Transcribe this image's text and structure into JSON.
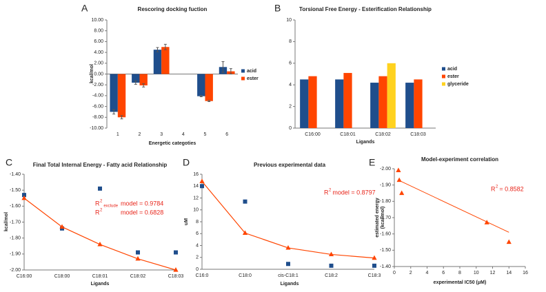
{
  "chart_data": [
    {
      "panel_label": "A",
      "type": "bar",
      "title": "Rescoring docking fuction",
      "ylabel": "kcal/mol",
      "xlabel": "Energetic categoties",
      "categories": [
        "1",
        "2",
        "3",
        "4",
        "5",
        "6"
      ],
      "ylim": [
        -10,
        10
      ],
      "yticks": [
        {
          "value": -10,
          "label": "-10.00"
        },
        {
          "value": -8,
          "label": "-8.00"
        },
        {
          "value": -6,
          "label": "-6.00"
        },
        {
          "value": -4,
          "label": "-4.00"
        },
        {
          "value": -2,
          "label": "-2.00"
        },
        {
          "value": 0,
          "label": "0.00"
        },
        {
          "value": 2,
          "label": "2.00"
        },
        {
          "value": 4,
          "label": "4.00"
        },
        {
          "value": 6,
          "label": "6.00"
        },
        {
          "value": 8,
          "label": "8.00"
        },
        {
          "value": 10,
          "label": "10.00"
        }
      ],
      "legend": "right",
      "series": [
        {
          "name": "acid",
          "color": "#1f4e8c",
          "values": [
            -7.0,
            -1.6,
            4.5,
            null,
            -4.1,
            1.3
          ],
          "errors": [
            0.4,
            0.3,
            0.4,
            null,
            0.1,
            1.0
          ]
        },
        {
          "name": "ester",
          "color": "#ff4500",
          "values": [
            -8.0,
            -2.1,
            5.0,
            null,
            -5.0,
            0.5
          ],
          "errors": [
            0.3,
            0.3,
            0.5,
            null,
            0.1,
            0.5
          ]
        }
      ]
    },
    {
      "panel_label": "B",
      "type": "bar",
      "title": "Torsional Free Energy - Esterification Relationship",
      "xlabel": "Ligands",
      "categories": [
        "C16:00",
        "C18:01",
        "C18:02",
        "C18:03"
      ],
      "ylim": [
        0,
        10
      ],
      "yticks": [
        0,
        2,
        4,
        6,
        8,
        10
      ],
      "legend": "right",
      "series": [
        {
          "name": "acid",
          "color": "#1f4e8c",
          "values": [
            4.5,
            4.5,
            4.2,
            4.2
          ]
        },
        {
          "name": "ester",
          "color": "#ff4500",
          "values": [
            4.8,
            5.1,
            4.8,
            4.5
          ]
        },
        {
          "name": "glyceride",
          "color": "#ffd21f",
          "values": [
            null,
            null,
            6.0,
            null
          ]
        }
      ]
    },
    {
      "panel_label": "C",
      "type": "scatter",
      "title": "Final Total Internal Energy - Fatty acid Relationship",
      "ylabel": "kcal/mol",
      "xlabel": "Ligands",
      "categories": [
        "C16:00",
        "C18:00",
        "C18:01",
        "C18:02",
        "C18:03"
      ],
      "ylim": [
        -2.0,
        -1.4
      ],
      "yticks": [
        {
          "value": -2.0,
          "label": "-2.00"
        },
        {
          "value": -1.9,
          "label": "-1.90"
        },
        {
          "value": -1.8,
          "label": "-1.80"
        },
        {
          "value": -1.7,
          "label": "-1.70"
        },
        {
          "value": -1.6,
          "label": "-1.60"
        },
        {
          "value": -1.5,
          "label": "-1.50"
        },
        {
          "value": -1.4,
          "label": "-1.40"
        }
      ],
      "series": [
        {
          "color": "#1f4e8c",
          "marker": "square",
          "values": [
            -1.53,
            -1.74,
            -1.49,
            -1.89,
            -1.89
          ]
        },
        {
          "color": "#ff4500",
          "marker": "triangle",
          "line": true,
          "values": [
            -1.55,
            -1.73,
            -1.84,
            -1.93,
            -2.0
          ]
        }
      ],
      "annotations": [
        {
          "base": "R",
          "sup": "2",
          "sub": "exclude",
          "text": "model = 0.9784"
        },
        {
          "base": "R",
          "sup": "2",
          "text": "model = 0.6828"
        }
      ]
    },
    {
      "panel_label": "D",
      "type": "scatter",
      "title": "Previous experimental data",
      "ylabel": "uM",
      "xlabel": "Ligands",
      "categories": [
        "C16:0",
        "C18:0",
        "cis-C18:1",
        "C18:2",
        "C18:3"
      ],
      "ylim": [
        0,
        16
      ],
      "yticks": [
        0,
        2,
        4,
        6,
        8,
        10,
        12,
        14,
        16
      ],
      "series": [
        {
          "color": "#1f4e8c",
          "marker": "square",
          "values": [
            14,
            11.4,
            0.9,
            0.6,
            0.6
          ]
        },
        {
          "color": "#ff4500",
          "marker": "triangle",
          "line": true,
          "values": [
            14.8,
            6.1,
            3.6,
            2.5,
            1.9
          ]
        }
      ],
      "annotations": [
        {
          "base": "R",
          "sup": "2",
          "text": "model = 0.8797"
        }
      ]
    },
    {
      "panel_label": "E",
      "type": "scatter",
      "title": "Model-experiment correlation",
      "ylabel": [
        "estimated energy",
        "(kcal/mol)"
      ],
      "xlabel": "experimental IC50 (μM)",
      "xlim": [
        0,
        16
      ],
      "xticks": [
        0,
        2,
        4,
        6,
        8,
        10,
        12,
        14,
        16
      ],
      "ylim": [
        -1.4,
        -2.0
      ],
      "yticks": [
        {
          "value": -1.4,
          "label": "-1.40"
        },
        {
          "value": -1.5,
          "label": "-1.50"
        },
        {
          "value": -1.6,
          "label": "-1.60"
        },
        {
          "value": -1.7,
          "label": "-1.70"
        },
        {
          "value": -1.8,
          "label": "-1.80"
        },
        {
          "value": -1.9,
          "label": "-1.90"
        },
        {
          "value": -2.0,
          "label": "-2.00"
        }
      ],
      "series": [
        {
          "color": "#ff4500",
          "marker": "triangle",
          "x": [
            0.5,
            0.6,
            0.9,
            11.3,
            14.0
          ],
          "values": [
            -1.99,
            -1.93,
            -1.85,
            -1.67,
            -1.55
          ]
        }
      ],
      "trendline": {
        "color": "#ff4500",
        "x": [
          0.5,
          14.0
        ],
        "y": [
          -1.93,
          -1.61
        ]
      },
      "annotations": [
        {
          "base": "R",
          "sup": "2",
          "text": "= 0.8582"
        }
      ]
    }
  ]
}
